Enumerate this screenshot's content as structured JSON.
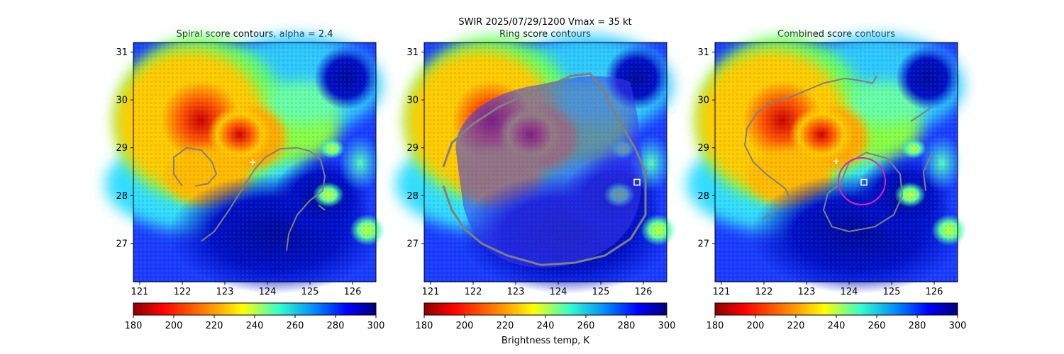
{
  "figure": {
    "suptitle_line1": "SWIR  2025/07/29/1200    Vmax = 35 kt",
    "colorbar_label": "Brightness temp, K"
  },
  "chart_data": [
    {
      "type": "heatmap",
      "title": "Spiral score contours, alpha =  2.4",
      "xlim": [
        120.85,
        126.55
      ],
      "ylim": [
        26.2,
        31.2
      ],
      "xticks": [
        121,
        122,
        123,
        124,
        125,
        126
      ],
      "yticks": [
        27,
        28,
        29,
        30,
        31
      ],
      "colormap": "jet_r",
      "color_range": [
        180,
        300
      ],
      "colorbar_ticks": [
        180,
        200,
        220,
        240,
        260,
        280,
        300
      ],
      "overlays": {
        "center_marker": {
          "symbol": "+",
          "lon": 123.65,
          "lat": 28.7,
          "color": "#ffffff"
        },
        "contours": [
          {
            "color": "#808080",
            "points": [
              [
                122.0,
                28.2
              ],
              [
                121.8,
                28.45
              ],
              [
                121.8,
                28.8
              ],
              [
                122.1,
                29.0
              ],
              [
                122.45,
                28.95
              ],
              [
                122.7,
                28.7
              ],
              [
                122.8,
                28.45
              ],
              [
                122.6,
                28.25
              ],
              [
                122.3,
                28.2
              ]
            ]
          },
          {
            "color": "#808080",
            "points": [
              [
                122.45,
                27.05
              ],
              [
                122.75,
                27.25
              ],
              [
                123.1,
                27.7
              ],
              [
                123.45,
                28.2
              ],
              [
                123.7,
                28.55
              ],
              [
                123.95,
                28.8
              ],
              [
                124.3,
                28.98
              ],
              [
                124.7,
                29.0
              ],
              [
                125.0,
                28.93
              ],
              [
                125.25,
                28.75
              ],
              [
                125.35,
                28.4
              ],
              [
                125.3,
                28.1
              ],
              [
                125.0,
                27.9
              ],
              [
                124.7,
                27.6
              ],
              [
                124.5,
                27.2
              ],
              [
                124.45,
                26.85
              ]
            ]
          },
          {
            "color": "#808080",
            "points": [
              [
                125.35,
                27.7
              ],
              [
                125.2,
                27.8
              ]
            ]
          }
        ]
      }
    },
    {
      "type": "heatmap",
      "title": "Ring score contours",
      "xlim": [
        120.85,
        126.55
      ],
      "ylim": [
        26.2,
        31.2
      ],
      "xticks": [
        121,
        122,
        123,
        124,
        125,
        126
      ],
      "yticks": [
        27,
        28,
        29,
        30,
        31
      ],
      "colormap": "jet_r",
      "color_range": [
        180,
        300
      ],
      "colorbar_ticks": [
        180,
        200,
        220,
        240,
        260,
        280,
        300
      ],
      "overlays": {
        "center_marker": {
          "symbol": "square",
          "lon": 125.85,
          "lat": 28.28,
          "color": "#ffffff"
        },
        "contours": [
          {
            "color": "#808080",
            "points": [
              [
                121.3,
                28.6
              ],
              [
                121.5,
                29.1
              ],
              [
                122.0,
                29.5
              ],
              [
                122.6,
                29.85
              ],
              [
                123.2,
                30.1
              ],
              [
                123.8,
                30.3
              ],
              [
                124.3,
                30.5
              ],
              [
                124.75,
                30.55
              ],
              [
                125.05,
                30.2
              ],
              [
                125.4,
                29.6
              ],
              [
                125.8,
                29.0
              ],
              [
                126.05,
                28.5
              ],
              [
                126.05,
                27.6
              ],
              [
                125.7,
                27.1
              ],
              [
                125.1,
                26.75
              ],
              [
                124.4,
                26.6
              ],
              [
                123.6,
                26.55
              ],
              [
                122.8,
                26.75
              ],
              [
                122.2,
                27.0
              ],
              [
                121.8,
                27.3
              ],
              [
                121.5,
                27.7
              ],
              [
                121.3,
                28.2
              ]
            ]
          }
        ]
      }
    },
    {
      "type": "heatmap",
      "title": "Combined score contours",
      "xlim": [
        120.85,
        126.55
      ],
      "ylim": [
        26.2,
        31.2
      ],
      "xticks": [
        121,
        122,
        123,
        124,
        125,
        126
      ],
      "yticks": [
        27,
        28,
        29,
        30,
        31
      ],
      "colormap": "jet_r",
      "color_range": [
        180,
        300
      ],
      "colorbar_ticks": [
        180,
        200,
        220,
        240,
        260,
        280,
        300
      ],
      "overlays": {
        "center_marker": {
          "symbol": "+",
          "lon": 123.7,
          "lat": 28.72,
          "color": "#ffffff"
        },
        "square_marker": {
          "symbol": "square",
          "lon": 124.35,
          "lat": 28.28,
          "color": "#ffffff"
        },
        "circle": {
          "lon": 124.3,
          "lat": 28.3,
          "radius_deg": 0.55,
          "color": "#e020c0"
        },
        "contours": [
          {
            "color": "#808080",
            "points": [
              [
                121.95,
                27.5
              ],
              [
                122.3,
                27.7
              ],
              [
                122.6,
                27.95
              ],
              [
                122.5,
                28.15
              ],
              [
                122.05,
                28.45
              ],
              [
                121.75,
                28.7
              ],
              [
                121.55,
                29.05
              ],
              [
                121.6,
                29.4
              ],
              [
                121.85,
                29.75
              ],
              [
                122.2,
                29.95
              ],
              [
                122.6,
                30.05
              ],
              [
                123.0,
                30.2
              ],
              [
                123.4,
                30.35
              ],
              [
                123.9,
                30.45
              ],
              [
                124.3,
                30.4
              ],
              [
                124.55,
                30.35
              ],
              [
                124.65,
                30.5
              ]
            ]
          },
          {
            "color": "#808080",
            "points": [
              [
                123.8,
                28.25
              ],
              [
                123.5,
                28.05
              ],
              [
                123.4,
                27.7
              ],
              [
                123.6,
                27.35
              ],
              [
                124.0,
                27.25
              ],
              [
                124.6,
                27.35
              ],
              [
                125.05,
                27.6
              ],
              [
                125.25,
                28.0
              ],
              [
                125.2,
                28.45
              ],
              [
                124.9,
                28.78
              ],
              [
                124.4,
                28.9
              ],
              [
                124.0,
                28.7
              ],
              [
                123.8,
                28.25
              ]
            ]
          },
          {
            "color": "#808080",
            "points": [
              [
                125.95,
                28.9
              ],
              [
                125.75,
                28.5
              ],
              [
                125.8,
                28.1
              ]
            ]
          },
          {
            "color": "#808080",
            "points": [
              [
                125.45,
                29.55
              ],
              [
                125.7,
                29.7
              ],
              [
                125.95,
                29.85
              ]
            ]
          }
        ]
      }
    }
  ]
}
